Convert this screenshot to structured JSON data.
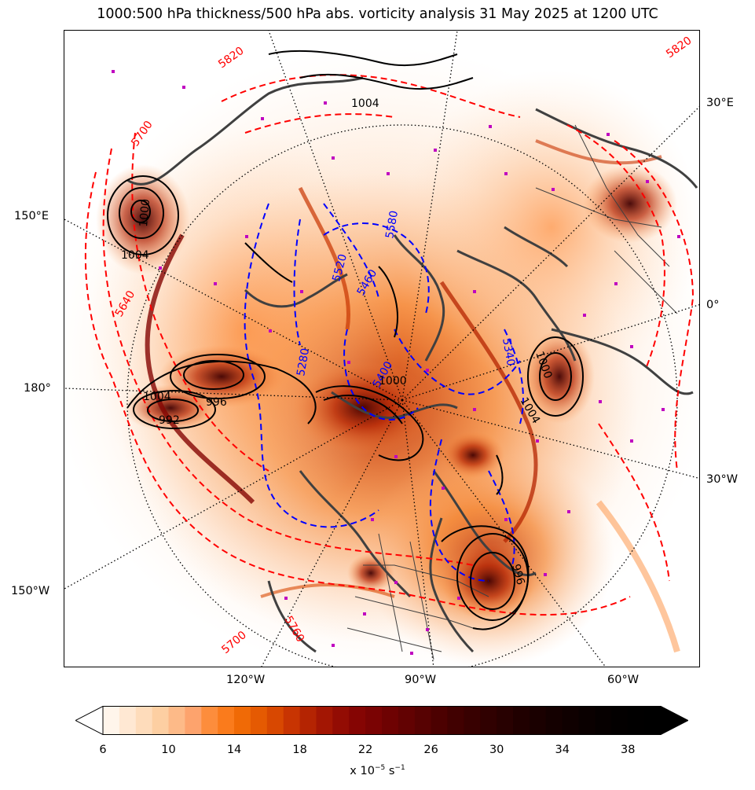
{
  "title": "1000:500 hPa thickness/500 hPa abs. vorticity analysis 31 May 2025 at 1200 UTC",
  "map": {
    "projection": "north-polar-stereographic",
    "meridian_labels": {
      "left_150e": "150°E",
      "left_180": "180°",
      "left_150w": "150°W",
      "right_30e": "30°E",
      "right_0": "0°",
      "right_30w": "30°W",
      "bottom_120w": "120°W",
      "bottom_90w": "90°W",
      "bottom_60w": "60°W"
    },
    "layers": [
      "500 hPa absolute vorticity (shaded)",
      "1000:500 hPa thickness (dashed)",
      "mean sea level pressure (solid black)",
      "coastlines and borders"
    ],
    "thickness_labels": {
      "t5820": "5820",
      "t5700": "5700",
      "t5640": "5640",
      "t5580": "5580",
      "t5520": "5520",
      "t5460": "5460",
      "t5400": "5400",
      "t5340": "5340",
      "t5280": "5280",
      "t5760": "5760",
      "t5820b": "5820",
      "t5700b": "5700"
    },
    "pressure_labels": {
      "p1004a": "1004",
      "p1004b": "1004",
      "p1004c": "1004",
      "p1000": "1000",
      "p996": "996",
      "p992": "992",
      "p1004d": "1004",
      "p1000b": "1000",
      "p996b": "996",
      "p1000c": "1000"
    },
    "colors": {
      "thickness_warm": "#ff0000",
      "thickness_cold": "#0000ff",
      "pressure": "#000000",
      "coast": "#404040",
      "station_marker": "#c000c0"
    }
  },
  "colorbar": {
    "ticks": [
      "6",
      "10",
      "14",
      "18",
      "22",
      "26",
      "30",
      "34",
      "38"
    ],
    "units_prefix": "x 10",
    "units_exp": "−5",
    "units_suffix": " s",
    "units_exp2": "−1",
    "min": 6,
    "max": 40,
    "step": 1,
    "extend": "both",
    "colors": [
      "#fff5eb",
      "#ffe8d3",
      "#fedcbb",
      "#fdcfa2",
      "#fdba88",
      "#fda36d",
      "#fd8d3c",
      "#fa7b1c",
      "#f06a06",
      "#e55a02",
      "#d84801",
      "#c83402",
      "#b42402",
      "#a31603",
      "#930c03",
      "#850503",
      "#7a0303",
      "#6e0202",
      "#620202",
      "#570202",
      "#4c0101",
      "#410101",
      "#380101",
      "#300101",
      "#280101",
      "#200000",
      "#1a0000",
      "#140000",
      "#0f0000",
      "#0a0000",
      "#060000",
      "#030000",
      "#010000",
      "#000000"
    ]
  }
}
